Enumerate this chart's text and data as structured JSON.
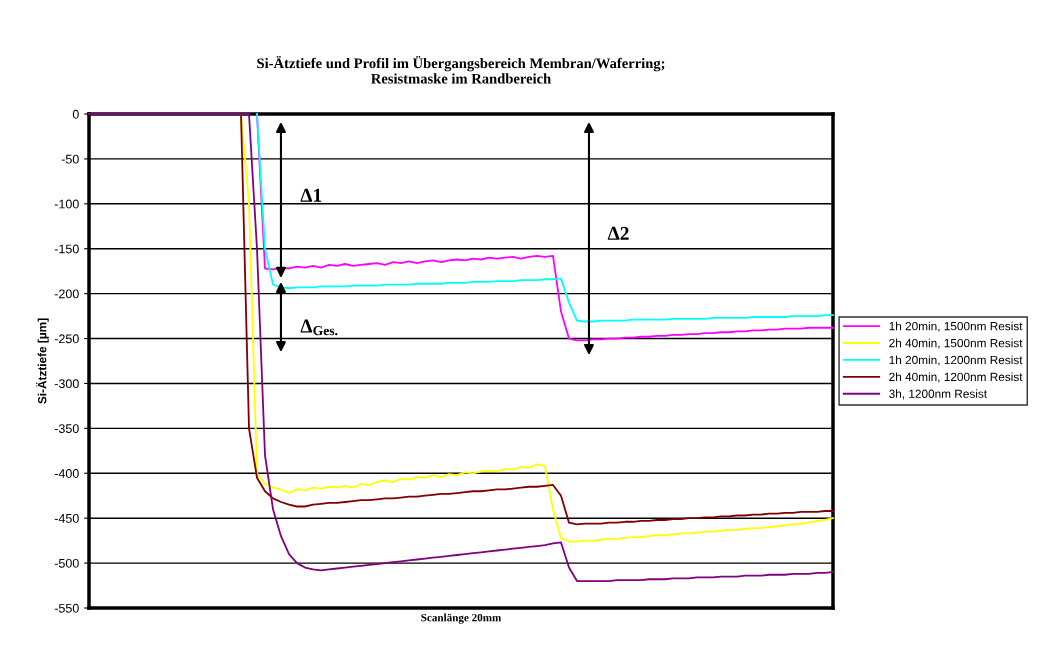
{
  "chart_data": {
    "type": "line",
    "title": "Si-Ätztiefe und Profil im Übergangsbereich Membran/Waferring;\nResistmaske im Randbereich",
    "xlabel": "Scanlänge 20mm",
    "ylabel": "Si-Ätztiefe [µm]",
    "categories": [
      null,
      null,
      null,
      null,
      null,
      null,
      null,
      null,
      null,
      null,
      null,
      null,
      null,
      null,
      null,
      null,
      null,
      null,
      null,
      null,
      null,
      null,
      null,
      null,
      null,
      null,
      null,
      null,
      null,
      null,
      null,
      null,
      null,
      null,
      null,
      null,
      null,
      null,
      null,
      null,
      null,
      null,
      null,
      null,
      null,
      null,
      null,
      null,
      null,
      null,
      null,
      null,
      null,
      null,
      null,
      null,
      null,
      null,
      null,
      null,
      null,
      null,
      null,
      null,
      null,
      null,
      null,
      null,
      null,
      null,
      null,
      null,
      null,
      null,
      null,
      null,
      null,
      null,
      null,
      null,
      null,
      null,
      null,
      null,
      null,
      null,
      null,
      null,
      null,
      null,
      null,
      null,
      null,
      null
    ],
    "series": [
      {
        "name": "1h 20min, 1500nm Resist",
        "color": "#ff00ff",
        "values": [
          null,
          null,
          null,
          null,
          null,
          null,
          null,
          null,
          null,
          null,
          null,
          null,
          null,
          null,
          null,
          null,
          null,
          null,
          null,
          null,
          null,
          0,
          -172,
          -173,
          -171,
          -172,
          -170,
          -171,
          -169,
          -171,
          -168,
          -169,
          -167,
          -169,
          -168,
          -167,
          -166,
          -168,
          -165,
          -166,
          -164,
          -166,
          -164,
          -163,
          -165,
          -163,
          -162,
          -163,
          -161,
          -162,
          -160,
          -161,
          -160,
          -159,
          -161,
          -159,
          -158,
          -159,
          -158,
          -220,
          -250,
          -252,
          -252,
          -251,
          -251,
          -250,
          -250,
          -249,
          -249,
          -248,
          -248,
          -247,
          -247,
          -246,
          -246,
          -245,
          -245,
          -244,
          -244,
          -243,
          -243,
          -242,
          -242,
          -241,
          -241,
          -240,
          -240,
          -239,
          -239,
          -239,
          -238,
          -238,
          -238,
          -238
        ]
      },
      {
        "name": "2h 40min, 1500nm Resist",
        "color": "#ffff00",
        "values": [
          null,
          null,
          null,
          null,
          null,
          null,
          null,
          null,
          null,
          null,
          null,
          null,
          null,
          null,
          null,
          null,
          null,
          null,
          null,
          0,
          -100,
          -400,
          -412,
          -416,
          -418,
          -422,
          -418,
          -419,
          -416,
          -417,
          -415,
          -416,
          -414,
          -416,
          -412,
          -413,
          -410,
          -408,
          -410,
          -406,
          -407,
          -404,
          -405,
          -402,
          -404,
          -401,
          -402,
          -399,
          -400,
          -398,
          -397,
          -398,
          -395,
          -396,
          -393,
          -394,
          -390,
          -392,
          -440,
          -472,
          -476,
          -476,
          -475,
          -475,
          -474,
          -473,
          -473,
          -472,
          -471,
          -471,
          -470,
          -469,
          -469,
          -468,
          -467,
          -467,
          -466,
          -465,
          -465,
          -464,
          -463,
          -463,
          -462,
          -461,
          -461,
          -460,
          -459,
          -458,
          -457,
          -456,
          -455,
          -453,
          -452,
          -450
        ]
      },
      {
        "name": "1h 20min, 1200nm Resist",
        "color": "#00ffff",
        "values": [
          null,
          null,
          null,
          null,
          null,
          null,
          null,
          null,
          null,
          null,
          null,
          null,
          null,
          null,
          null,
          null,
          null,
          null,
          null,
          null,
          null,
          0,
          -150,
          -190,
          -193,
          -194,
          -193,
          -193,
          -193,
          -192,
          -192,
          -192,
          -192,
          -191,
          -191,
          -191,
          -191,
          -190,
          -190,
          -190,
          -190,
          -189,
          -189,
          -189,
          -189,
          -188,
          -188,
          -188,
          -187,
          -187,
          -187,
          -186,
          -186,
          -186,
          -185,
          -185,
          -185,
          -184,
          -184,
          -183,
          -210,
          -230,
          -231,
          -231,
          -230,
          -230,
          -230,
          -230,
          -229,
          -229,
          -229,
          -229,
          -229,
          -228,
          -228,
          -228,
          -228,
          -228,
          -227,
          -227,
          -227,
          -227,
          -227,
          -226,
          -226,
          -226,
          -226,
          -226,
          -225,
          -225,
          -225,
          -225,
          -224,
          -224
        ]
      },
      {
        "name": "2h 40min, 1200nm Resist",
        "color": "#800000",
        "values": [
          null,
          null,
          null,
          null,
          null,
          null,
          null,
          null,
          null,
          null,
          null,
          null,
          null,
          null,
          null,
          null,
          null,
          null,
          null,
          0,
          -350,
          -405,
          -420,
          -428,
          -432,
          -435,
          -437,
          -437,
          -435,
          -434,
          -433,
          -433,
          -432,
          -431,
          -430,
          -430,
          -429,
          -428,
          -428,
          -427,
          -426,
          -426,
          -425,
          -424,
          -423,
          -423,
          -422,
          -421,
          -420,
          -420,
          -419,
          -418,
          -418,
          -417,
          -416,
          -415,
          -415,
          -414,
          -413,
          -425,
          -455,
          -457,
          -456,
          -456,
          -456,
          -455,
          -455,
          -454,
          -454,
          -453,
          -453,
          -452,
          -452,
          -451,
          -451,
          -450,
          -450,
          -449,
          -449,
          -448,
          -448,
          -447,
          -447,
          -446,
          -446,
          -445,
          -445,
          -444,
          -444,
          -443,
          -443,
          -443,
          -442,
          -442
        ]
      },
      {
        "name": "3h, 1200nm Resist",
        "color": "#800080",
        "values": [
          0,
          0,
          0,
          0,
          0,
          0,
          0,
          0,
          0,
          0,
          0,
          0,
          0,
          0,
          0,
          0,
          0,
          0,
          0,
          0,
          0,
          -150,
          -380,
          -440,
          -470,
          -490,
          -500,
          -505,
          -507,
          -508,
          -507,
          -506,
          -505,
          -504,
          -503,
          -502,
          -501,
          -500,
          -499,
          -498,
          -497,
          -496,
          -495,
          -494,
          -493,
          -492,
          -491,
          -490,
          -489,
          -488,
          -487,
          -486,
          -485,
          -484,
          -483,
          -482,
          -481,
          -480,
          -478,
          -477,
          -505,
          -520,
          -520,
          -520,
          -520,
          -520,
          -519,
          -519,
          -519,
          -519,
          -518,
          -518,
          -518,
          -517,
          -517,
          -517,
          -516,
          -516,
          -516,
          -515,
          -515,
          -515,
          -514,
          -514,
          -514,
          -513,
          -513,
          -513,
          -512,
          -512,
          -512,
          -511,
          -511,
          -510
        ]
      }
    ],
    "ylim": [
      -550,
      0
    ],
    "yticks": [
      0,
      -50,
      -100,
      -150,
      -200,
      -250,
      -300,
      -350,
      -400,
      -450,
      -500,
      -550
    ],
    "grid": "y",
    "legend": "right",
    "marker": "none",
    "line_style": "solid",
    "tick_labels": "y",
    "annotations": [
      "Δ1",
      "Δ2",
      "Δ$_{Ges.}$"
    ]
  }
}
